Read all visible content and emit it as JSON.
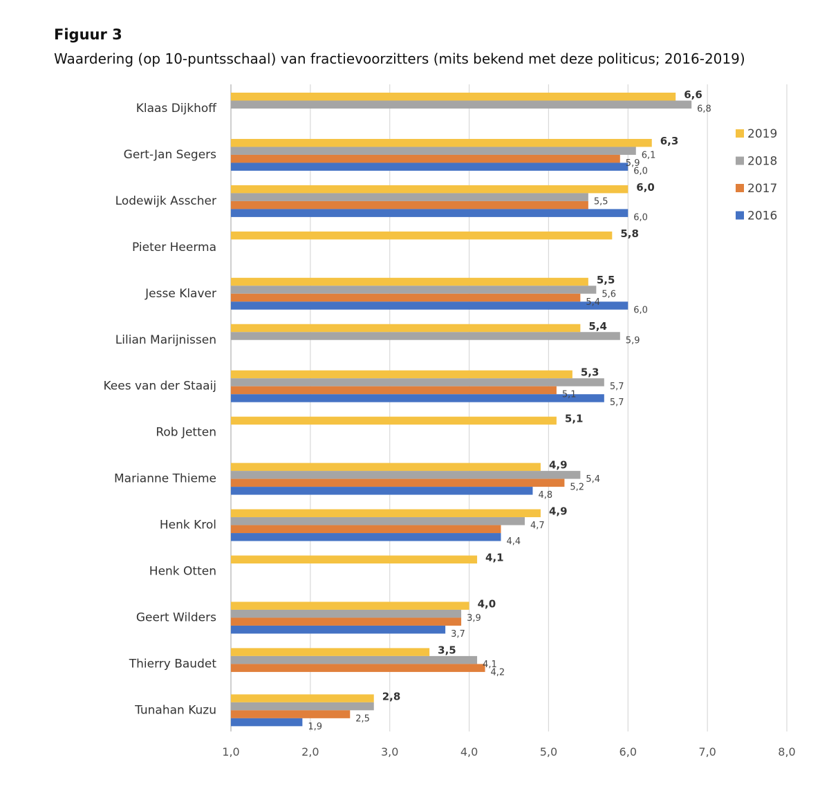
{
  "figure_label": "Figuur 3",
  "figure_title": "Waardering (op 10-puntsschaal) van fractievoorzitters (mits bekend met deze politicus; 2016-2019)",
  "chart_data": {
    "type": "bar",
    "orientation": "horizontal",
    "title": "Waardering (op 10-puntsschaal) van fractievoorzitters (mits bekend met deze politicus; 2016-2019)",
    "xlabel": "",
    "ylabel": "",
    "xlim": [
      1.0,
      8.0
    ],
    "x_ticks": [
      "1,0",
      "2,0",
      "3,0",
      "4,0",
      "5,0",
      "6,0",
      "7,0",
      "8,0"
    ],
    "x_tick_values": [
      1,
      2,
      3,
      4,
      5,
      6,
      7,
      8
    ],
    "grid": "vertical",
    "legend_position": "right",
    "categories": [
      "Klaas Dijkhoff",
      "Gert-Jan Segers",
      "Lodewijk Asscher",
      "Pieter Heerma",
      "Jesse Klaver",
      "Lilian Marijnissen",
      "Kees van der Staaij",
      "Rob Jetten",
      "Marianne Thieme",
      "Henk Krol",
      "Henk Otten",
      "Geert Wilders",
      "Thierry Baudet",
      "Tunahan Kuzu"
    ],
    "series": [
      {
        "name": "2019",
        "color": "#F5C242",
        "values": [
          6.6,
          6.3,
          6.0,
          5.8,
          5.5,
          5.4,
          5.3,
          5.1,
          4.9,
          4.9,
          4.1,
          4.0,
          3.5,
          2.8
        ],
        "labels": [
          "6,6",
          "6,3",
          "6,0",
          "5,8",
          "5,5",
          "5,4",
          "5,3",
          "5,1",
          "4,9",
          "4,9",
          "4,1",
          "4,0",
          "3,5",
          "2,8"
        ]
      },
      {
        "name": "2018",
        "color": "#A5A5A5",
        "values": [
          6.8,
          6.1,
          5.5,
          null,
          5.6,
          5.9,
          5.7,
          null,
          5.4,
          4.7,
          null,
          3.9,
          4.1,
          2.8
        ],
        "labels": [
          "6,8",
          "6,1",
          "5,5",
          null,
          "5,6",
          "5,9",
          "5,7",
          null,
          "5,4",
          "4,7",
          null,
          "3,9",
          "4,1",
          null
        ]
      },
      {
        "name": "2017",
        "color": "#E07F3B",
        "values": [
          null,
          5.9,
          5.5,
          null,
          5.4,
          null,
          5.1,
          null,
          5.2,
          4.4,
          null,
          3.9,
          4.2,
          2.5
        ],
        "labels": [
          null,
          "5,9",
          null,
          null,
          "5,4",
          null,
          "5,1",
          null,
          "5,2",
          null,
          null,
          null,
          "4,2",
          "2,5"
        ]
      },
      {
        "name": "2016",
        "color": "#4472C4",
        "values": [
          null,
          6.0,
          6.0,
          null,
          6.0,
          null,
          5.7,
          null,
          4.8,
          4.4,
          null,
          3.7,
          null,
          1.9
        ],
        "labels": [
          null,
          "6,0",
          "6,0",
          null,
          "6,0",
          null,
          "5,7",
          null,
          "4,8",
          "4,4",
          null,
          "3,7",
          null,
          "1,9"
        ]
      }
    ]
  }
}
